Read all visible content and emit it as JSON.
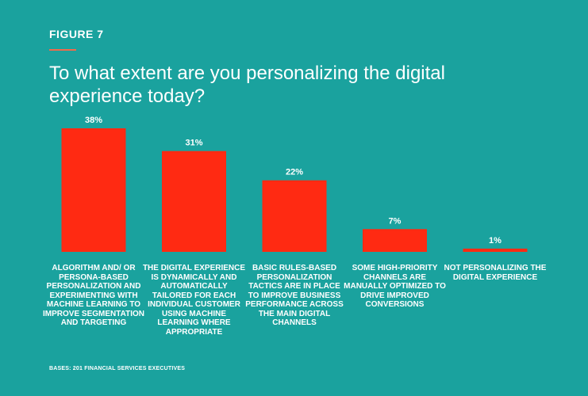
{
  "figure_label": "FIGURE 7",
  "footnote": "BASES: 201 FINANCIAL SERVICES EXECUTIVES",
  "colors": {
    "background": "#1aa29e",
    "bar": "#ff2a12",
    "accent_rule": "#f26a4b",
    "text": "#ffffff"
  },
  "chart_data": {
    "type": "bar",
    "title": "To what extent are you personalizing the digital experience today?",
    "xlabel": "",
    "ylabel": "",
    "ylim": [
      0,
      40
    ],
    "grid": false,
    "categories": [
      "ALGORITHM AND/ OR PERSONA-BASED PERSONALIZATION AND EXPERIMENTING WITH MACHINE LEARNING TO IMPROVE SEGMENTATION AND TARGETING",
      "THE DIGITAL EXPERIENCE IS DYNAMICALLY AND AUTOMATICALLY TAILORED FOR EACH INDIVIDUAL CUSTOMER USING MACHINE LEARNING WHERE APPROPRIATE",
      "BASIC RULES-BASED PERSONALIZATION TACTICS ARE IN PLACE TO IMPROVE BUSINESS PERFORMANCE ACROSS THE MAIN DIGITAL CHANNELS",
      "SOME HIGH-PRIORITY CHANNELS ARE MANUALLY OPTIMIZED TO DRIVE IMPROVED CONVERSIONS",
      "NOT PERSONALIZING THE DIGITAL EXPERIENCE"
    ],
    "values": [
      38,
      31,
      22,
      7,
      1
    ],
    "value_labels": [
      "38%",
      "31%",
      "22%",
      "7%",
      "1%"
    ]
  }
}
